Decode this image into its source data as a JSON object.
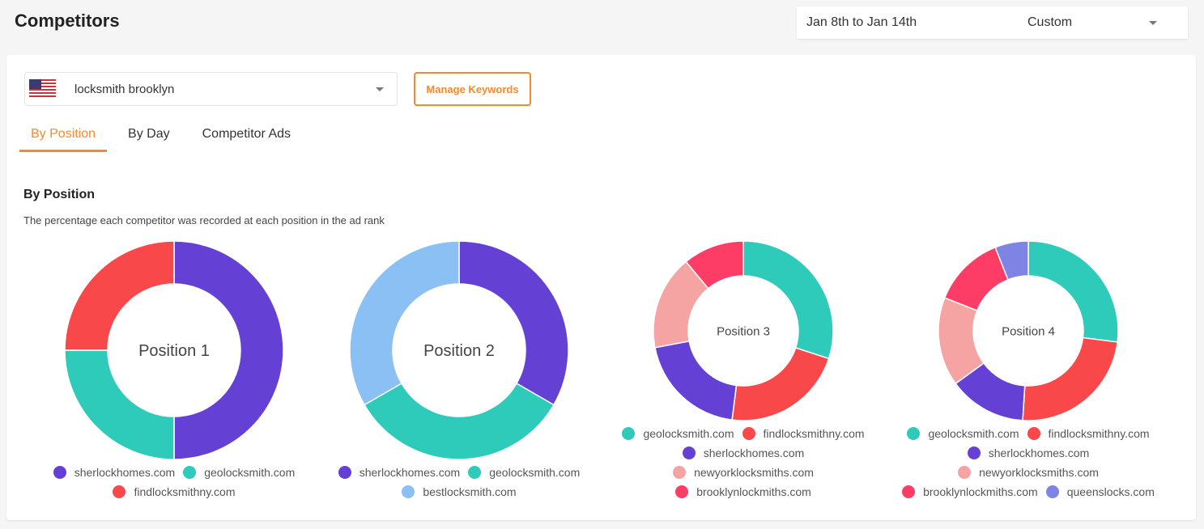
{
  "header": {
    "title": "Competitors",
    "date_range": "Jan 8th to Jan 14th",
    "range_mode": "Custom"
  },
  "keyword": {
    "value": "locksmith brooklyn",
    "flag": "us-flag-icon"
  },
  "manage_keywords": "Manage Keywords",
  "tabs": [
    {
      "label": "By Position",
      "active": true
    },
    {
      "label": "By Day"
    },
    {
      "label": "Competitor Ads"
    }
  ],
  "section": {
    "title": "By Position",
    "description": "The percentage each competitor was recorded at each position in the ad rank"
  },
  "colors": {
    "accent": "#f7892a",
    "sherlockhomes.com": "#6441d4",
    "geolocksmith.com": "#2ecbbb",
    "findlocksmithny.com": "#f9484a",
    "bestlocksmith.com": "#8ac0f3",
    "newyorklocksmiths.com": "#f5a3a3",
    "brooklynlockmiths.com": "#fe3d67",
    "queenslocks.com": "#7e84e4"
  },
  "chart_data": [
    {
      "type": "pie",
      "donut": true,
      "label": "Position 1",
      "series": [
        {
          "name": "sherlockhomes.com",
          "value": 50
        },
        {
          "name": "geolocksmith.com",
          "value": 25
        },
        {
          "name": "findlocksmithny.com",
          "value": 25
        }
      ]
    },
    {
      "type": "pie",
      "donut": true,
      "label": "Position 2",
      "series": [
        {
          "name": "sherlockhomes.com",
          "value": 33.3
        },
        {
          "name": "geolocksmith.com",
          "value": 33.3
        },
        {
          "name": "bestlocksmith.com",
          "value": 33.3
        }
      ]
    },
    {
      "type": "pie",
      "donut": true,
      "label": "Position 3",
      "series": [
        {
          "name": "geolocksmith.com",
          "value": 30
        },
        {
          "name": "findlocksmithny.com",
          "value": 22
        },
        {
          "name": "sherlockhomes.com",
          "value": 20
        },
        {
          "name": "newyorklocksmiths.com",
          "value": 17
        },
        {
          "name": "brooklynlockmiths.com",
          "value": 11
        }
      ]
    },
    {
      "type": "pie",
      "donut": true,
      "label": "Position 4",
      "series": [
        {
          "name": "geolocksmith.com",
          "value": 27
        },
        {
          "name": "findlocksmithny.com",
          "value": 24
        },
        {
          "name": "sherlockhomes.com",
          "value": 14
        },
        {
          "name": "newyorklocksmiths.com",
          "value": 16
        },
        {
          "name": "brooklynlockmiths.com",
          "value": 13
        },
        {
          "name": "queenslocks.com",
          "value": 6
        }
      ]
    }
  ]
}
